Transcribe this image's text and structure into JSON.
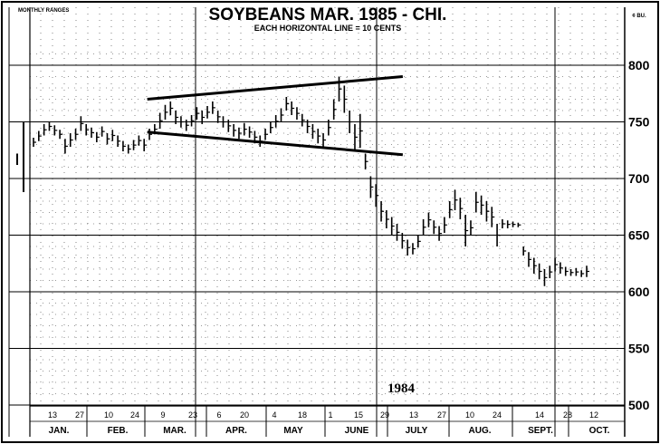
{
  "chart_data": {
    "type": "bar",
    "title": "SOYBEANS MAR. 1985 - CHI.",
    "subtitle": "EACH HORIZONTAL LINE = 10 CENTS",
    "monthly_ranges_label": "MONTHLY RANGES",
    "unit_label": "¢ BU.",
    "year_label": "1984",
    "ylim": [
      500,
      820
    ],
    "yticks": [
      500,
      550,
      600,
      650,
      700,
      750,
      800
    ],
    "months": [
      "JAN.",
      "FEB.",
      "MAR.",
      "APR.",
      "MAY",
      "JUNE",
      "JULY",
      "AUG.",
      "SEPT.",
      "OCT."
    ],
    "day_ticks": [
      "13",
      "27",
      "10",
      "24",
      "9",
      "23",
      "6",
      "20",
      "4",
      "18",
      "1",
      "15",
      "29",
      "13",
      "27",
      "10",
      "24",
      "14",
      "28",
      "12"
    ],
    "monthly_ranges": [
      {
        "high": 722,
        "low": 712
      },
      {
        "high": 750,
        "low": 688
      }
    ],
    "daily_series": [
      {
        "x": 0,
        "high": 736,
        "low": 728
      },
      {
        "x": 1,
        "high": 742,
        "low": 733
      },
      {
        "x": 2,
        "high": 748,
        "low": 738
      },
      {
        "x": 3,
        "high": 750,
        "low": 742
      },
      {
        "x": 4,
        "high": 747,
        "low": 738
      },
      {
        "x": 5,
        "high": 743,
        "low": 735
      },
      {
        "x": 6,
        "high": 735,
        "low": 722
      },
      {
        "x": 7,
        "high": 740,
        "low": 728
      },
      {
        "x": 8,
        "high": 744,
        "low": 734
      },
      {
        "x": 9,
        "high": 755,
        "low": 742
      },
      {
        "x": 10,
        "high": 748,
        "low": 738
      },
      {
        "x": 11,
        "high": 745,
        "low": 736
      },
      {
        "x": 12,
        "high": 741,
        "low": 732
      },
      {
        "x": 13,
        "high": 746,
        "low": 737
      },
      {
        "x": 14,
        "high": 740,
        "low": 730
      },
      {
        "x": 15,
        "high": 743,
        "low": 733
      },
      {
        "x": 16,
        "high": 738,
        "low": 728
      },
      {
        "x": 17,
        "high": 733,
        "low": 724
      },
      {
        "x": 18,
        "high": 730,
        "low": 722
      },
      {
        "x": 19,
        "high": 734,
        "low": 725
      },
      {
        "x": 20,
        "high": 738,
        "low": 729
      },
      {
        "x": 21,
        "high": 735,
        "low": 724
      },
      {
        "x": 22,
        "high": 744,
        "low": 734
      },
      {
        "x": 23,
        "high": 748,
        "low": 739
      },
      {
        "x": 24,
        "high": 758,
        "low": 744
      },
      {
        "x": 25,
        "high": 765,
        "low": 752
      },
      {
        "x": 26,
        "high": 768,
        "low": 756
      },
      {
        "x": 27,
        "high": 760,
        "low": 748
      },
      {
        "x": 28,
        "high": 755,
        "low": 745
      },
      {
        "x": 29,
        "high": 752,
        "low": 742
      },
      {
        "x": 30,
        "high": 756,
        "low": 746
      },
      {
        "x": 31,
        "high": 763,
        "low": 752
      },
      {
        "x": 32,
        "high": 760,
        "low": 748
      },
      {
        "x": 33,
        "high": 764,
        "low": 753
      },
      {
        "x": 34,
        "high": 768,
        "low": 757
      },
      {
        "x": 35,
        "high": 760,
        "low": 749
      },
      {
        "x": 36,
        "high": 755,
        "low": 745
      },
      {
        "x": 37,
        "high": 752,
        "low": 741
      },
      {
        "x": 38,
        "high": 748,
        "low": 737
      },
      {
        "x": 39,
        "high": 745,
        "low": 735
      },
      {
        "x": 40,
        "high": 749,
        "low": 738
      },
      {
        "x": 41,
        "high": 746,
        "low": 736
      },
      {
        "x": 42,
        "high": 742,
        "low": 731
      },
      {
        "x": 43,
        "high": 738,
        "low": 728
      },
      {
        "x": 44,
        "high": 744,
        "low": 734
      },
      {
        "x": 45,
        "high": 750,
        "low": 740
      },
      {
        "x": 46,
        "high": 756,
        "low": 745
      },
      {
        "x": 47,
        "high": 762,
        "low": 750
      },
      {
        "x": 48,
        "high": 772,
        "low": 760
      },
      {
        "x": 49,
        "high": 768,
        "low": 756
      },
      {
        "x": 50,
        "high": 763,
        "low": 752
      },
      {
        "x": 51,
        "high": 757,
        "low": 746
      },
      {
        "x": 52,
        "high": 752,
        "low": 740
      },
      {
        "x": 53,
        "high": 748,
        "low": 735
      },
      {
        "x": 54,
        "high": 744,
        "low": 731
      },
      {
        "x": 55,
        "high": 740,
        "low": 728
      },
      {
        "x": 56,
        "high": 752,
        "low": 738
      },
      {
        "x": 57,
        "high": 770,
        "low": 752
      },
      {
        "x": 58,
        "high": 790,
        "low": 768
      },
      {
        "x": 59,
        "high": 782,
        "low": 758
      },
      {
        "x": 60,
        "high": 760,
        "low": 740
      },
      {
        "x": 61,
        "high": 748,
        "low": 725
      },
      {
        "x": 62,
        "high": 757,
        "low": 727
      },
      {
        "x": 63,
        "high": 722,
        "low": 708
      },
      {
        "x": 64,
        "high": 702,
        "low": 683
      },
      {
        "x": 65,
        "high": 695,
        "low": 675
      },
      {
        "x": 66,
        "high": 680,
        "low": 662
      },
      {
        "x": 67,
        "high": 672,
        "low": 656
      },
      {
        "x": 68,
        "high": 666,
        "low": 650
      },
      {
        "x": 69,
        "high": 660,
        "low": 645
      },
      {
        "x": 70,
        "high": 652,
        "low": 638
      },
      {
        "x": 71,
        "high": 646,
        "low": 632
      },
      {
        "x": 72,
        "high": 643,
        "low": 633
      },
      {
        "x": 73,
        "high": 650,
        "low": 639
      },
      {
        "x": 74,
        "high": 664,
        "low": 650
      },
      {
        "x": 75,
        "high": 670,
        "low": 657
      },
      {
        "x": 76,
        "high": 663,
        "low": 651
      },
      {
        "x": 77,
        "high": 658,
        "low": 645
      },
      {
        "x": 78,
        "high": 666,
        "low": 652
      },
      {
        "x": 79,
        "high": 680,
        "low": 665
      },
      {
        "x": 80,
        "high": 690,
        "low": 672
      },
      {
        "x": 81,
        "high": 683,
        "low": 664
      },
      {
        "x": 82,
        "high": 668,
        "low": 640
      },
      {
        "x": 83,
        "high": 663,
        "low": 650
      },
      {
        "x": 84,
        "high": 688,
        "low": 670
      },
      {
        "x": 85,
        "high": 685,
        "low": 668
      },
      {
        "x": 86,
        "high": 680,
        "low": 662
      },
      {
        "x": 87,
        "high": 675,
        "low": 657
      },
      {
        "x": 88,
        "high": 660,
        "low": 640
      },
      {
        "x": 89,
        "high": 664,
        "low": 656
      },
      {
        "x": 90,
        "high": 663,
        "low": 656
      },
      {
        "x": 91,
        "high": 662,
        "low": 657
      },
      {
        "x": 92,
        "high": 661,
        "low": 657
      },
      {
        "x": 93,
        "high": 640,
        "low": 632
      },
      {
        "x": 94,
        "high": 635,
        "low": 622
      },
      {
        "x": 95,
        "high": 630,
        "low": 616
      },
      {
        "x": 96,
        "high": 625,
        "low": 611
      },
      {
        "x": 97,
        "high": 620,
        "low": 605
      },
      {
        "x": 98,
        "high": 623,
        "low": 612
      },
      {
        "x": 99,
        "high": 630,
        "low": 618
      },
      {
        "x": 100,
        "high": 626,
        "low": 616
      },
      {
        "x": 101,
        "high": 622,
        "low": 614
      },
      {
        "x": 102,
        "high": 620,
        "low": 614
      },
      {
        "x": 103,
        "high": 621,
        "low": 614
      },
      {
        "x": 104,
        "high": 619,
        "low": 613
      },
      {
        "x": 105,
        "high": 623,
        "low": 613
      }
    ],
    "trendlines": [
      {
        "x1": 24,
        "y1": 770,
        "x2": 67,
        "y2": 790
      },
      {
        "x1": 24,
        "y1": 741,
        "x2": 67,
        "y2": 721
      }
    ],
    "grid": true
  }
}
